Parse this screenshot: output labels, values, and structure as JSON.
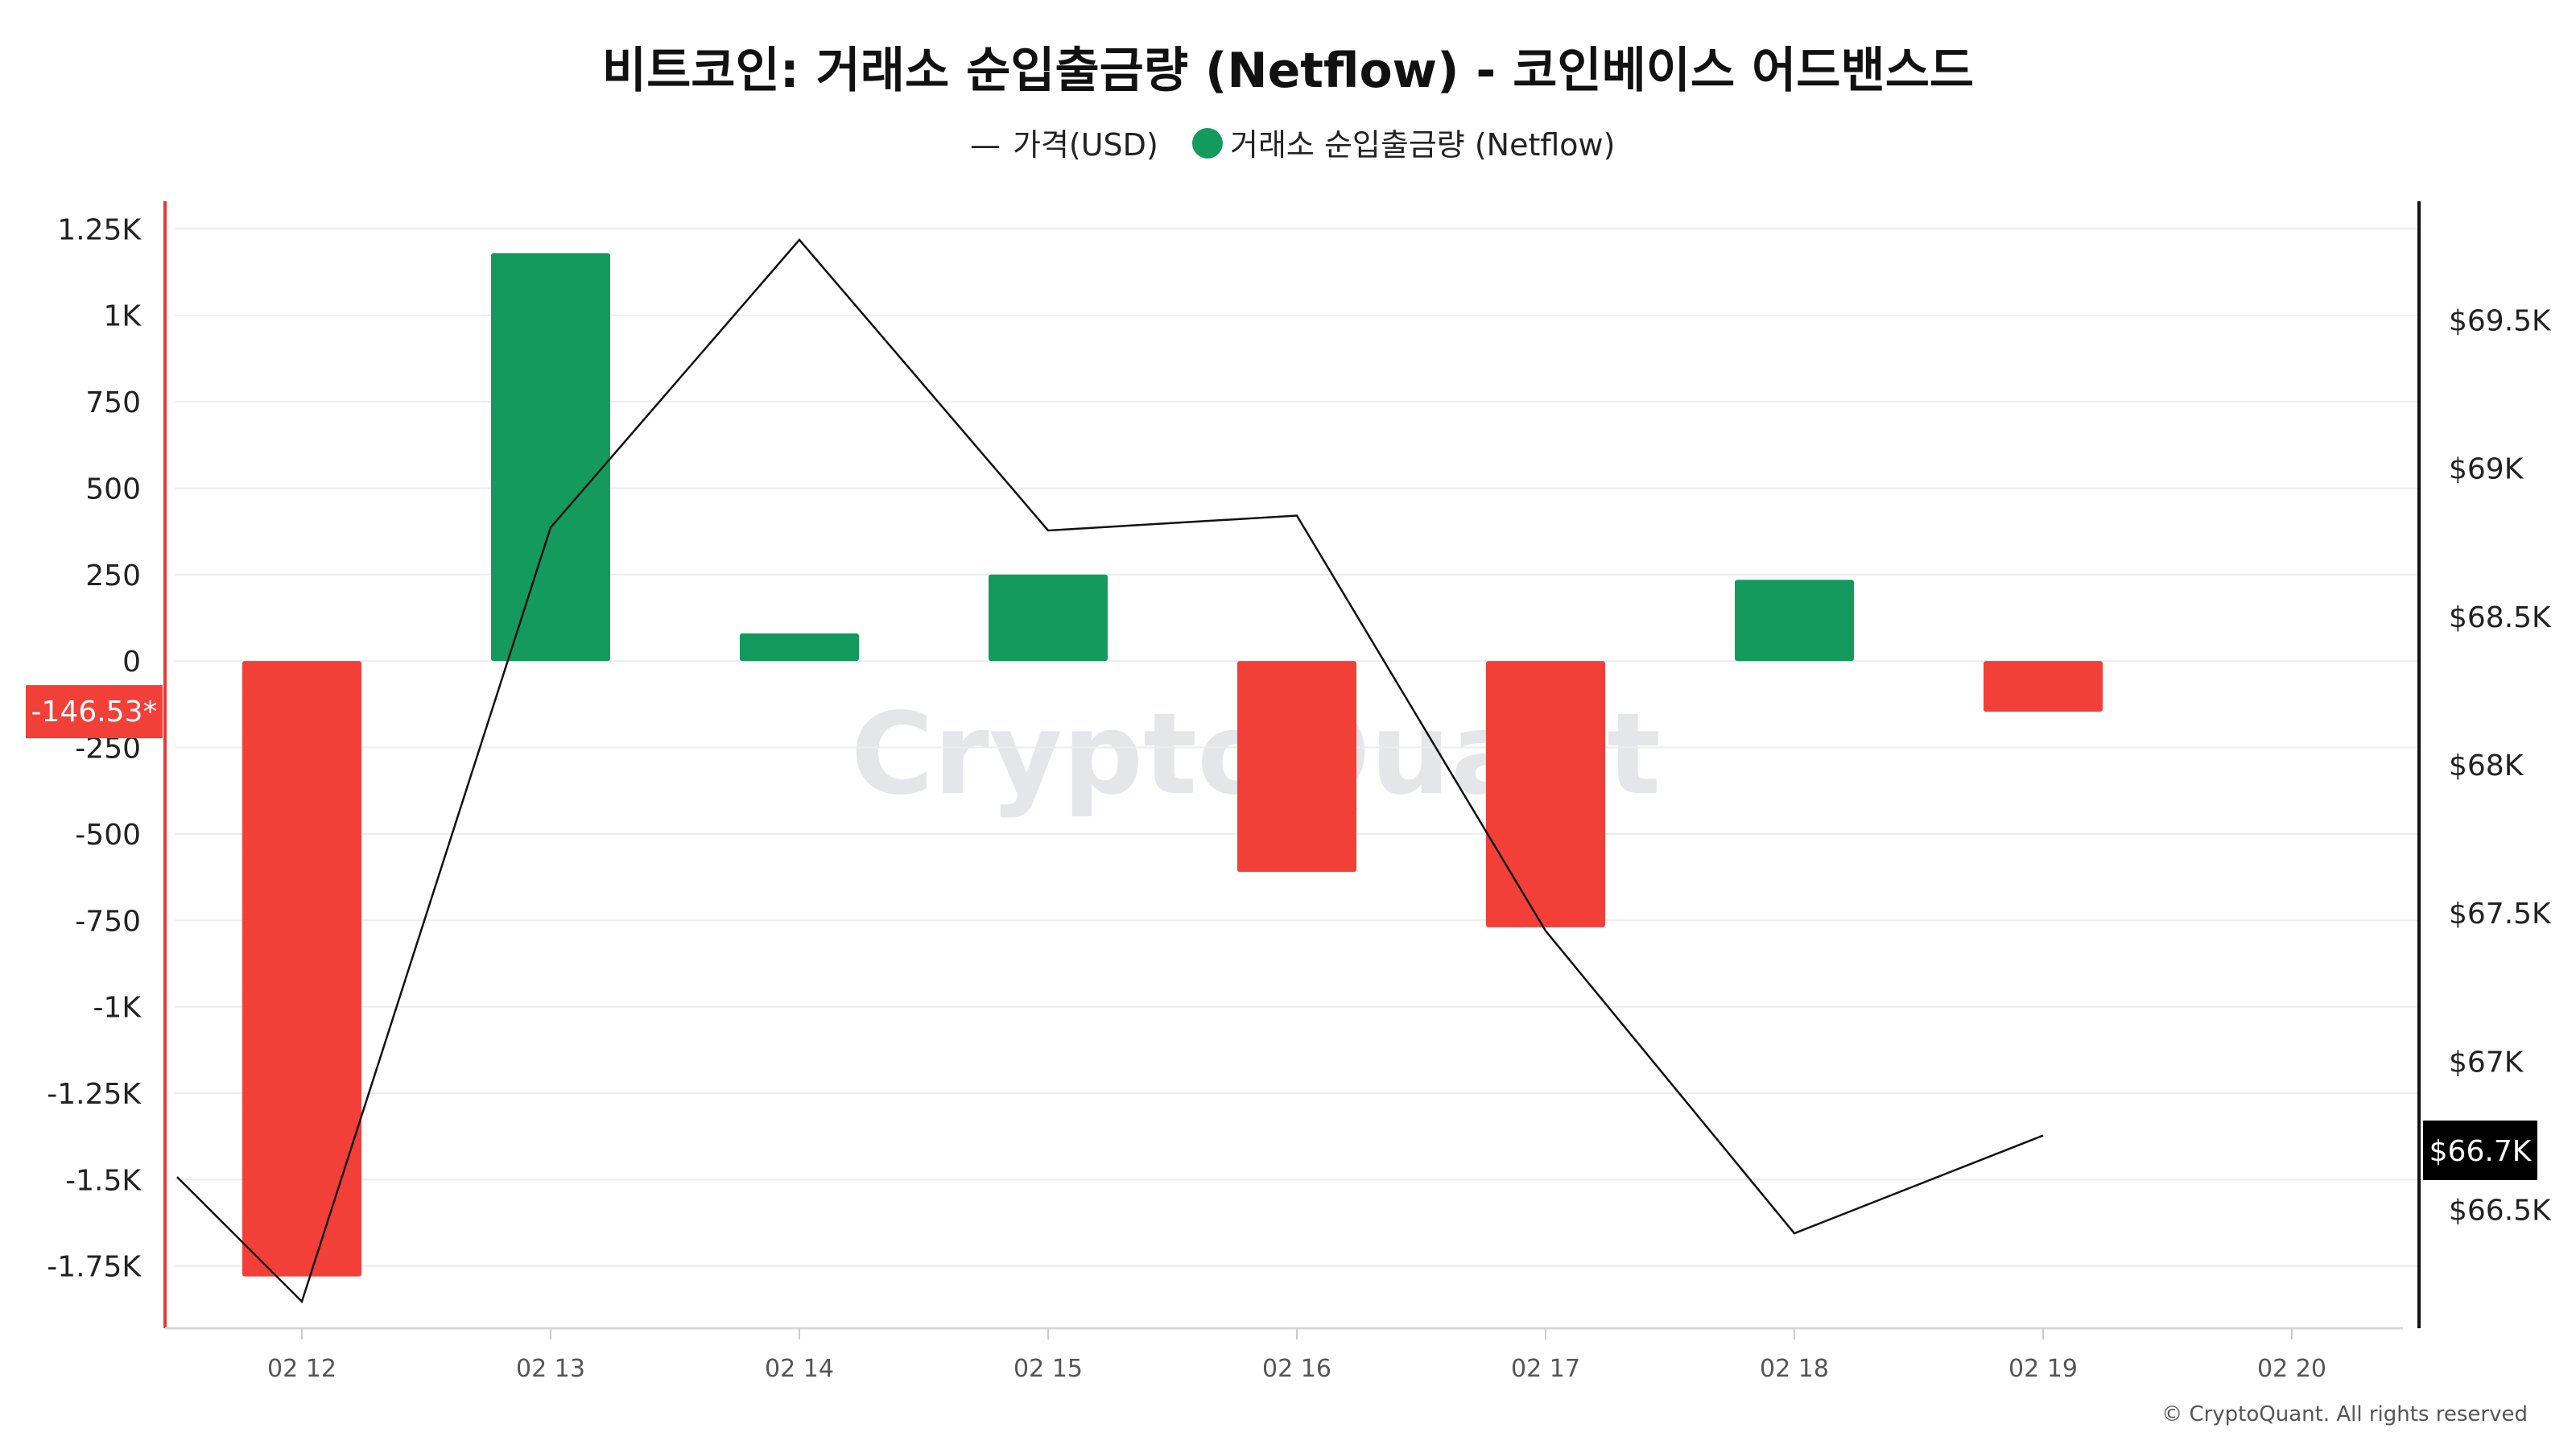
{
  "chart_data": {
    "type": "bar",
    "title": "비트코인: 거래소 순입출금량 (Netflow) - 코인베이스 어드밴스드",
    "legend": [
      {
        "key": "price",
        "label": "가격(USD)",
        "marker": "—"
      },
      {
        "key": "netflow",
        "label": "거래소 순입출금량 (Netflow)",
        "marker": "circle"
      }
    ],
    "categories": [
      "02 12",
      "02 13",
      "02 14",
      "02 15",
      "02 16",
      "02 17",
      "02 18",
      "02 19",
      "02 20"
    ],
    "series": [
      {
        "key": "netflow",
        "axis": "left",
        "type": "bar",
        "values": [
          -1780,
          1180,
          80,
          250,
          -610,
          -770,
          235,
          -146.53,
          null
        ]
      },
      {
        "key": "price",
        "axis": "right",
        "type": "line",
        "values": [
          66190,
          68800,
          69770,
          68790,
          68840,
          67440,
          66420,
          66750,
          null
        ],
        "left_edge_value": 66610
      }
    ],
    "y_left": {
      "ticks": [
        1250,
        1000,
        750,
        500,
        250,
        0,
        -250,
        -500,
        -750,
        -1000,
        -1250,
        -1500,
        -1750
      ],
      "tick_labels": [
        "1.25K",
        "1K",
        "750",
        "500",
        "250",
        "0",
        "-250",
        "-500",
        "-750",
        "-1K",
        "-1.25K",
        "-1.5K",
        "-1.75K"
      ],
      "range": [
        -1930,
        1330
      ],
      "highlight_label": "-146.53*"
    },
    "y_right": {
      "ticks": [
        69500,
        69000,
        68500,
        68000,
        67500,
        67000,
        66500
      ],
      "tick_labels": [
        "$69.5K",
        "$69K",
        "$68.5K",
        "$68K",
        "$67.5K",
        "$67K",
        "$66.5K"
      ],
      "range": [
        66100,
        69900
      ],
      "highlight_label": "$66.7K",
      "highlight_value": 66700
    },
    "grid": true,
    "legend_position": "top-center",
    "colors": {
      "positive": "#159a5e",
      "negative": "#f23f38",
      "price_line": "#111111",
      "left_axis": "#e53935",
      "right_axis": "#111111",
      "badge_left": "#f23f38",
      "badge_right": "#000000"
    }
  },
  "watermark": "CryptoQuant",
  "credit": "© CryptoQuant. All rights reserved"
}
